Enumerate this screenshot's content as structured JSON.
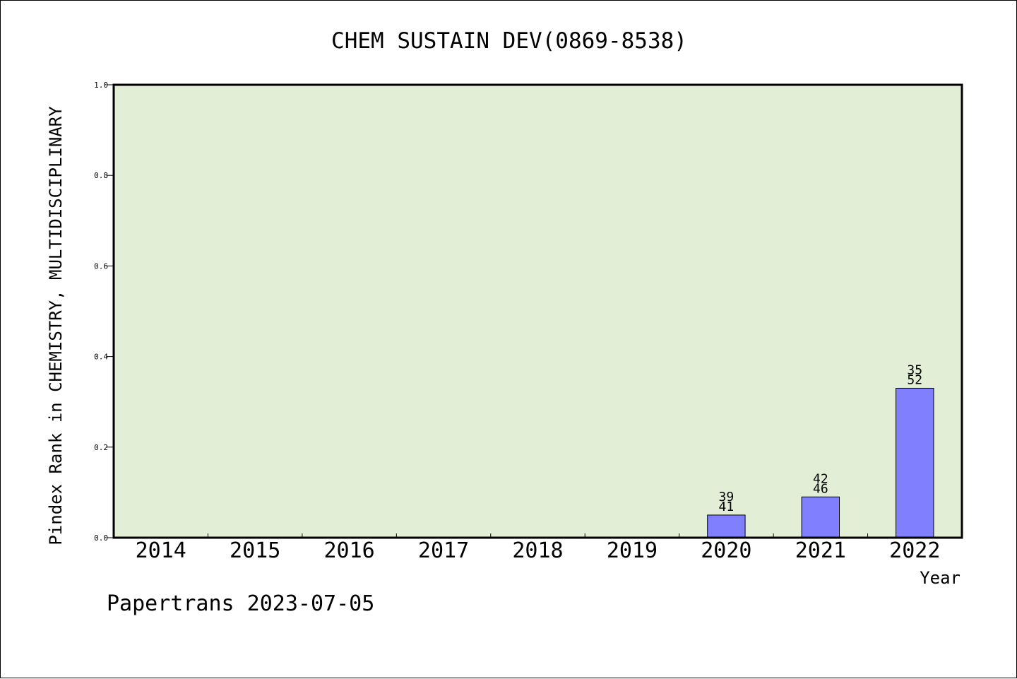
{
  "chart_data": {
    "type": "bar",
    "title": "CHEM SUSTAIN DEV(0869-8538)",
    "xlabel": "Year",
    "ylabel": "Pindex Rank in CHEMISTRY, MULTIDISCIPLINARY",
    "ylim": [
      0,
      1.0
    ],
    "yticks": [
      "0.0",
      "0.2",
      "0.4",
      "0.6",
      "0.8",
      "1.0"
    ],
    "categories": [
      "2014",
      "2015",
      "2016",
      "2017",
      "2018",
      "2019",
      "2020",
      "2021",
      "2022"
    ],
    "values": [
      null,
      null,
      null,
      null,
      null,
      null,
      0.05,
      0.09,
      0.33
    ],
    "bar_labels": [
      null,
      null,
      null,
      null,
      null,
      null,
      {
        "top": "39",
        "bottom": "41"
      },
      {
        "top": "42",
        "bottom": "46"
      },
      {
        "top": "35",
        "bottom": "52"
      }
    ],
    "grid": false,
    "colors": {
      "bar": "#8080ff",
      "plot_background": "#e2efd6"
    }
  },
  "footer": "Papertrans 2023-07-05"
}
